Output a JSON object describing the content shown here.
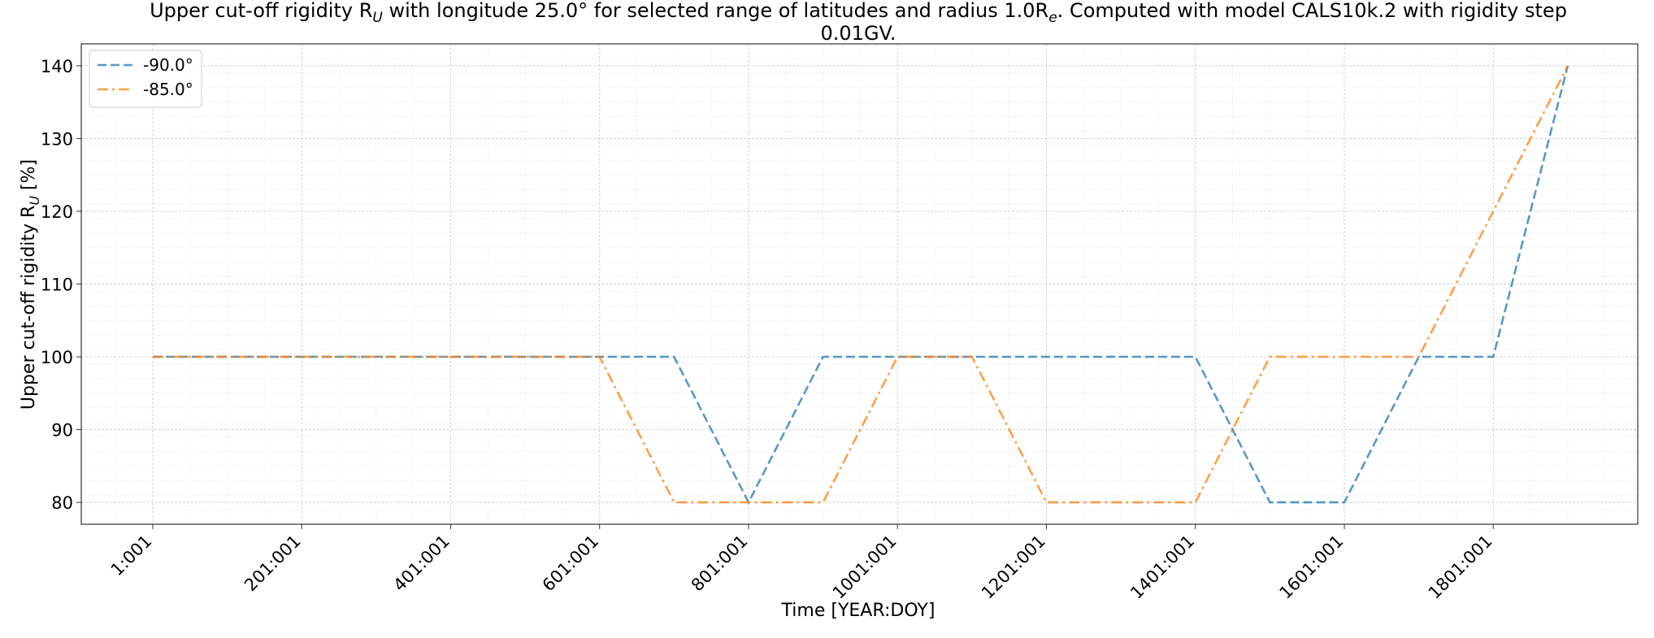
{
  "chart_data": {
    "type": "line",
    "title_line1": "Upper cut-off rigidity R",
    "title_sub": "U",
    "title_rest": " with longitude 25.0° for selected range of latitudes and radius 1.0R",
    "title_sub2": "e",
    "title_tail": ". Computed with model CALS10k.2 with rigidity step",
    "title_line2": "0.01GV.",
    "xlabel": "Time [YEAR:DOY]",
    "ylabel_main": "Upper cut-off rigidity R",
    "ylabel_sub": "U",
    "ylabel_tail": " [%]",
    "xlim": [
      -95,
      1995
    ],
    "ylim": [
      77,
      143
    ],
    "x_ticks": [
      1,
      201,
      401,
      601,
      801,
      1001,
      1201,
      1401,
      1601,
      1801
    ],
    "x_tick_labels": [
      "1:001",
      "201:001",
      "401:001",
      "601:001",
      "801:001",
      "1001:001",
      "1201:001",
      "1401:001",
      "1601:001",
      "1801:001"
    ],
    "y_ticks": [
      80,
      90,
      100,
      110,
      120,
      130,
      140
    ],
    "y_tick_labels": [
      "80",
      "90",
      "100",
      "110",
      "120",
      "130",
      "140"
    ],
    "grid": true,
    "legend_position": "top-left",
    "x": [
      1,
      101,
      201,
      301,
      401,
      501,
      601,
      701,
      801,
      901,
      1001,
      1101,
      1201,
      1301,
      1401,
      1501,
      1601,
      1701,
      1801,
      1901
    ],
    "series": [
      {
        "name": "-90.0°",
        "color": "#1f77b4",
        "style": "dashed",
        "values": [
          100,
          100,
          100,
          100,
          100,
          100,
          100,
          100,
          80,
          100,
          100,
          100,
          100,
          100,
          100,
          80,
          80,
          100,
          100,
          140
        ]
      },
      {
        "name": "-85.0°",
        "color": "#ff7f0e",
        "style": "dashdot",
        "values": [
          100,
          100,
          100,
          100,
          100,
          100,
          100,
          80,
          80,
          80,
          100,
          100,
          80,
          80,
          80,
          100,
          100,
          100,
          120,
          140
        ]
      }
    ]
  }
}
